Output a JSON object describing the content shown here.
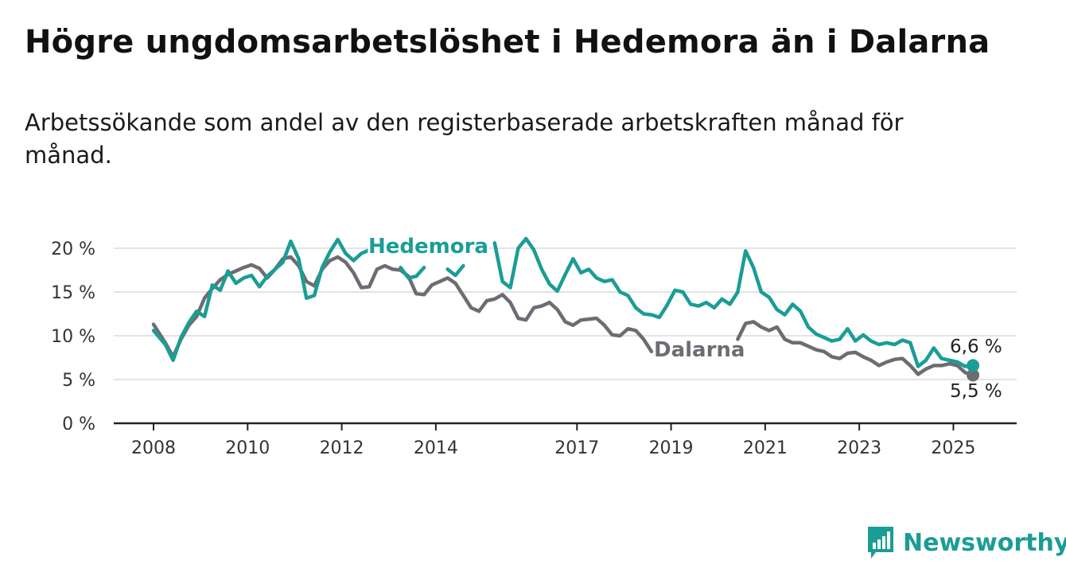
{
  "title": "Högre ungdomsarbetslöshet i Hedemora än i Dalarna",
  "subtitle": "Arbetssökande som andel av den registerbaserade arbetskraften månad för månad.",
  "brand": "Newsworthy",
  "colors": {
    "hedemora": "#1a9d95",
    "dalarna": "#6e6c73",
    "grid": "#dcdcdc",
    "axis": "#222222"
  },
  "chart_data": {
    "type": "line",
    "title": "Högre ungdomsarbetslöshet i Hedemora än i Dalarna",
    "subtitle": "Arbetssökande som andel av den registerbaserade arbetskraften månad för månad.",
    "xlim": [
      "2008-01",
      "2025-07"
    ],
    "ylim": [
      0,
      20
    ],
    "y_ticks": [
      0,
      5,
      10,
      15,
      20
    ],
    "y_tick_labels": [
      "0 %",
      "5 %",
      "10 %",
      "15 %",
      "20 %"
    ],
    "x_ticks": [
      "2008",
      "2010",
      "2012",
      "2014",
      "2017",
      "2019",
      "2021",
      "2023",
      "2025"
    ],
    "grid": true,
    "legend": "inline labels",
    "series": [
      {
        "name": "Hedemora",
        "end_label": "6,6 %",
        "points": [
          [
            "2008-01",
            10.6
          ],
          [
            "2008-04",
            9.0
          ],
          [
            "2008-06",
            7.2
          ],
          [
            "2008-08",
            9.8
          ],
          [
            "2008-10",
            11.5
          ],
          [
            "2008-12",
            12.8
          ],
          [
            "2009-02",
            12.2
          ],
          [
            "2009-04",
            15.8
          ],
          [
            "2009-06",
            15.2
          ],
          [
            "2009-08",
            17.4
          ],
          [
            "2009-10",
            16.0
          ],
          [
            "2009-12",
            16.6
          ],
          [
            "2010-02",
            16.9
          ],
          [
            "2010-04",
            15.6
          ],
          [
            "2010-06",
            16.8
          ],
          [
            "2010-08",
            17.6
          ],
          [
            "2010-10",
            18.4
          ],
          [
            "2010-12",
            20.8
          ],
          [
            "2011-02",
            18.8
          ],
          [
            "2011-04",
            14.3
          ],
          [
            "2011-06",
            14.6
          ],
          [
            "2011-08",
            17.8
          ],
          [
            "2011-10",
            19.6
          ],
          [
            "2011-12",
            21.0
          ],
          [
            "2012-02",
            19.4
          ],
          [
            "2012-04",
            18.6
          ],
          [
            "2012-06",
            19.4
          ],
          [
            "2012-08",
            19.8
          ]
        ],
        "points_2": [
          [
            "2013-04",
            17.8
          ],
          [
            "2013-06",
            16.6
          ],
          [
            "2013-08",
            16.8
          ],
          [
            "2013-10",
            17.8
          ]
        ],
        "points_3": [
          [
            "2014-04",
            17.6
          ],
          [
            "2014-06",
            16.9
          ],
          [
            "2014-08",
            18.0
          ]
        ],
        "points_4": [
          [
            "2015-04",
            20.6
          ],
          [
            "2015-06",
            16.2
          ],
          [
            "2015-08",
            15.5
          ],
          [
            "2015-10",
            20.0
          ],
          [
            "2015-12",
            21.1
          ],
          [
            "2016-02",
            19.8
          ],
          [
            "2016-04",
            17.6
          ],
          [
            "2016-06",
            15.9
          ],
          [
            "2016-08",
            15.1
          ],
          [
            "2016-10",
            17.0
          ],
          [
            "2016-12",
            18.8
          ],
          [
            "2017-02",
            17.2
          ],
          [
            "2017-04",
            17.6
          ],
          [
            "2017-06",
            16.6
          ],
          [
            "2017-08",
            16.2
          ],
          [
            "2017-10",
            16.4
          ],
          [
            "2017-12",
            15.0
          ],
          [
            "2018-02",
            14.6
          ],
          [
            "2018-04",
            13.2
          ],
          [
            "2018-06",
            12.5
          ],
          [
            "2018-08",
            12.4
          ],
          [
            "2018-10",
            12.1
          ],
          [
            "2018-12",
            13.5
          ],
          [
            "2019-02",
            15.2
          ],
          [
            "2019-04",
            15.0
          ],
          [
            "2019-06",
            13.6
          ],
          [
            "2019-08",
            13.4
          ],
          [
            "2019-10",
            13.8
          ],
          [
            "2019-12",
            13.2
          ],
          [
            "2020-02",
            14.2
          ],
          [
            "2020-04",
            13.6
          ],
          [
            "2020-06",
            15.0
          ],
          [
            "2020-08",
            19.7
          ],
          [
            "2020-10",
            17.8
          ],
          [
            "2020-12",
            15.0
          ],
          [
            "2021-02",
            14.4
          ],
          [
            "2021-04",
            13.0
          ],
          [
            "2021-06",
            12.4
          ],
          [
            "2021-08",
            13.6
          ],
          [
            "2021-10",
            12.8
          ],
          [
            "2021-12",
            11.0
          ],
          [
            "2022-02",
            10.2
          ],
          [
            "2022-04",
            9.8
          ],
          [
            "2022-06",
            9.4
          ],
          [
            "2022-08",
            9.6
          ],
          [
            "2022-10",
            10.8
          ],
          [
            "2022-12",
            9.4
          ],
          [
            "2023-02",
            10.1
          ],
          [
            "2023-04",
            9.4
          ],
          [
            "2023-06",
            9.0
          ],
          [
            "2023-08",
            9.2
          ],
          [
            "2023-10",
            9.0
          ],
          [
            "2023-12",
            9.5
          ],
          [
            "2024-02",
            9.2
          ],
          [
            "2024-04",
            6.5
          ],
          [
            "2024-06",
            7.2
          ],
          [
            "2024-08",
            8.6
          ],
          [
            "2024-10",
            7.4
          ],
          [
            "2024-12",
            7.2
          ],
          [
            "2025-02",
            7.0
          ],
          [
            "2025-04",
            6.5
          ],
          [
            "2025-06",
            6.6
          ]
        ]
      },
      {
        "name": "Dalarna",
        "end_label": "5,5 %",
        "points": [
          [
            "2008-01",
            11.3
          ],
          [
            "2008-04",
            9.2
          ],
          [
            "2008-06",
            7.6
          ],
          [
            "2008-08",
            9.6
          ],
          [
            "2008-10",
            11.2
          ],
          [
            "2008-12",
            12.2
          ],
          [
            "2009-02",
            14.3
          ],
          [
            "2009-04",
            15.4
          ],
          [
            "2009-06",
            16.4
          ],
          [
            "2009-08",
            17.0
          ],
          [
            "2009-10",
            17.4
          ],
          [
            "2009-12",
            17.8
          ],
          [
            "2010-02",
            18.1
          ],
          [
            "2010-04",
            17.7
          ],
          [
            "2010-06",
            16.6
          ],
          [
            "2010-08",
            17.6
          ],
          [
            "2010-10",
            18.8
          ],
          [
            "2010-12",
            19.0
          ],
          [
            "2011-02",
            18.0
          ],
          [
            "2011-04",
            16.2
          ],
          [
            "2011-06",
            15.7
          ],
          [
            "2011-08",
            17.6
          ],
          [
            "2011-10",
            18.6
          ],
          [
            "2011-12",
            19.0
          ],
          [
            "2012-02",
            18.4
          ],
          [
            "2012-04",
            17.2
          ],
          [
            "2012-06",
            15.5
          ],
          [
            "2012-08",
            15.6
          ],
          [
            "2012-10",
            17.6
          ],
          [
            "2012-12",
            18.0
          ],
          [
            "2013-02",
            17.6
          ],
          [
            "2013-04",
            17.5
          ],
          [
            "2013-06",
            16.8
          ],
          [
            "2013-08",
            14.8
          ],
          [
            "2013-10",
            14.7
          ],
          [
            "2013-12",
            15.8
          ],
          [
            "2014-02",
            16.2
          ],
          [
            "2014-04",
            16.6
          ],
          [
            "2014-06",
            16.0
          ],
          [
            "2014-08",
            14.6
          ],
          [
            "2014-10",
            13.2
          ],
          [
            "2014-12",
            12.8
          ],
          [
            "2015-02",
            14.0
          ],
          [
            "2015-04",
            14.2
          ],
          [
            "2015-06",
            14.7
          ],
          [
            "2015-08",
            13.8
          ],
          [
            "2015-10",
            12.0
          ],
          [
            "2015-12",
            11.8
          ],
          [
            "2016-02",
            13.2
          ],
          [
            "2016-04",
            13.4
          ],
          [
            "2016-06",
            13.8
          ],
          [
            "2016-08",
            13.0
          ],
          [
            "2016-10",
            11.6
          ],
          [
            "2016-12",
            11.2
          ],
          [
            "2017-02",
            11.8
          ],
          [
            "2017-04",
            11.9
          ],
          [
            "2017-06",
            12.0
          ],
          [
            "2017-08",
            11.2
          ],
          [
            "2017-10",
            10.1
          ],
          [
            "2017-12",
            10.0
          ],
          [
            "2018-02",
            10.8
          ],
          [
            "2018-04",
            10.6
          ],
          [
            "2018-06",
            9.6
          ],
          [
            "2018-08",
            8.2
          ]
        ],
        "points_2": [
          [
            "2020-06",
            9.6
          ],
          [
            "2020-08",
            11.4
          ],
          [
            "2020-10",
            11.6
          ],
          [
            "2020-12",
            11.0
          ],
          [
            "2021-02",
            10.6
          ],
          [
            "2021-04",
            11.0
          ],
          [
            "2021-06",
            9.6
          ],
          [
            "2021-08",
            9.2
          ],
          [
            "2021-10",
            9.2
          ],
          [
            "2021-12",
            8.8
          ],
          [
            "2022-02",
            8.4
          ],
          [
            "2022-04",
            8.2
          ],
          [
            "2022-06",
            7.6
          ],
          [
            "2022-08",
            7.4
          ],
          [
            "2022-10",
            8.0
          ],
          [
            "2022-12",
            8.1
          ],
          [
            "2023-02",
            7.6
          ],
          [
            "2023-04",
            7.2
          ],
          [
            "2023-06",
            6.6
          ],
          [
            "2023-08",
            7.0
          ],
          [
            "2023-10",
            7.3
          ],
          [
            "2023-12",
            7.4
          ],
          [
            "2024-02",
            6.6
          ],
          [
            "2024-04",
            5.6
          ],
          [
            "2024-06",
            6.2
          ],
          [
            "2024-08",
            6.6
          ],
          [
            "2024-10",
            6.6
          ],
          [
            "2024-12",
            6.8
          ],
          [
            "2025-02",
            6.6
          ],
          [
            "2025-04",
            5.8
          ],
          [
            "2025-06",
            5.5
          ]
        ]
      }
    ]
  }
}
